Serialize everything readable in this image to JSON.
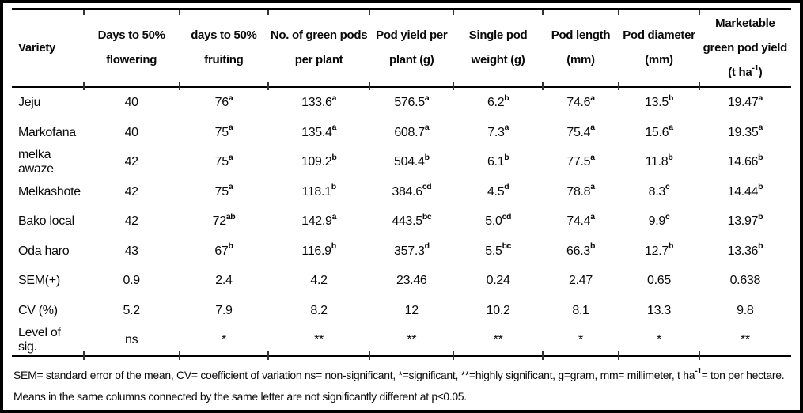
{
  "table": {
    "columns": [
      "Variety",
      "Days to 50% flowering",
      "days to 50% fruiting",
      "No. of green pods per plant",
      "Pod yield per plant (g)",
      "Single pod weight (g)",
      "Pod length (mm)",
      "Pod diameter (mm)",
      "Marketable green pod yield (t ha⁻¹)"
    ],
    "rows": [
      {
        "label": "Jeju",
        "cells": [
          {
            "v": "40"
          },
          {
            "v": "76",
            "s": "a"
          },
          {
            "v": "133.6",
            "s": "a"
          },
          {
            "v": "576.5",
            "s": "a"
          },
          {
            "v": "6.2",
            "s": "b"
          },
          {
            "v": "74.6",
            "s": "a"
          },
          {
            "v": "13.5",
            "s": "b"
          },
          {
            "v": "19.47",
            "s": "a"
          }
        ]
      },
      {
        "label": "Markofana",
        "cells": [
          {
            "v": "40"
          },
          {
            "v": "75",
            "s": "a"
          },
          {
            "v": "135.4",
            "s": "a"
          },
          {
            "v": "608.7",
            "s": "a"
          },
          {
            "v": "7.3",
            "s": "a"
          },
          {
            "v": "75.4",
            "s": "a"
          },
          {
            "v": "15.6",
            "s": "a"
          },
          {
            "v": "19.35",
            "s": "a"
          }
        ]
      },
      {
        "label": "melka awaze",
        "cells": [
          {
            "v": "42"
          },
          {
            "v": "75",
            "s": "a"
          },
          {
            "v": "109.2",
            "s": "b"
          },
          {
            "v": "504.4",
            "s": "b"
          },
          {
            "v": "6.1",
            "s": "b"
          },
          {
            "v": "77.5",
            "s": "a"
          },
          {
            "v": "11.8",
            "s": "b"
          },
          {
            "v": "14.66",
            "s": "b"
          }
        ]
      },
      {
        "label": "Melkashote",
        "cells": [
          {
            "v": "42"
          },
          {
            "v": "75",
            "s": "a"
          },
          {
            "v": "118.1",
            "s": "b"
          },
          {
            "v": "384.6",
            "s": "cd"
          },
          {
            "v": "4.5",
            "s": "d"
          },
          {
            "v": "78.8",
            "s": "a"
          },
          {
            "v": "8.3",
            "s": "c"
          },
          {
            "v": "14.44",
            "s": "b"
          }
        ]
      },
      {
        "label": "Bako local",
        "cells": [
          {
            "v": "42"
          },
          {
            "v": "72",
            "s": "ab"
          },
          {
            "v": "142.9",
            "s": "a"
          },
          {
            "v": "443.5",
            "s": "bc"
          },
          {
            "v": "5.0",
            "s": "cd"
          },
          {
            "v": "74.4",
            "s": "a"
          },
          {
            "v": "9.9",
            "s": "c"
          },
          {
            "v": "13.97",
            "s": "b"
          }
        ]
      },
      {
        "label": "Oda haro",
        "cells": [
          {
            "v": "43"
          },
          {
            "v": "67",
            "s": "b"
          },
          {
            "v": "116.9",
            "s": "b"
          },
          {
            "v": "357.3",
            "s": "d"
          },
          {
            "v": "5.5",
            "s": "bc"
          },
          {
            "v": "66.3",
            "s": "b"
          },
          {
            "v": "12.7",
            "s": "b"
          },
          {
            "v": "13.36",
            "s": "b"
          }
        ]
      },
      {
        "label": "SEM(+)",
        "cells": [
          {
            "v": "0.9"
          },
          {
            "v": "2.4"
          },
          {
            "v": "4.2"
          },
          {
            "v": "23.46"
          },
          {
            "v": "0.24"
          },
          {
            "v": "2.47"
          },
          {
            "v": "0.65"
          },
          {
            "v": "0.638"
          }
        ]
      },
      {
        "label": "CV (%)",
        "cells": [
          {
            "v": "5.2"
          },
          {
            "v": "7.9"
          },
          {
            "v": "8.2"
          },
          {
            "v": "12"
          },
          {
            "v": "10.2"
          },
          {
            "v": "8.1"
          },
          {
            "v": "13.3"
          },
          {
            "v": "9.8"
          }
        ]
      },
      {
        "label": "Level of sig.",
        "cells": [
          {
            "v": "ns"
          },
          {
            "v": "*"
          },
          {
            "v": "**"
          },
          {
            "v": "**"
          },
          {
            "v": "**"
          },
          {
            "v": "*"
          },
          {
            "v": "*"
          },
          {
            "v": "**"
          }
        ]
      }
    ]
  },
  "footnote": "SEM= standard error of the mean, CV= coefficient of variation ns= non-significant, *=significant, **=highly significant, g=gram, mm= millimeter, t ha⁻¹= ton per hectare. Means in the same columns connected by the same letter are not significantly different at p≤0.05."
}
